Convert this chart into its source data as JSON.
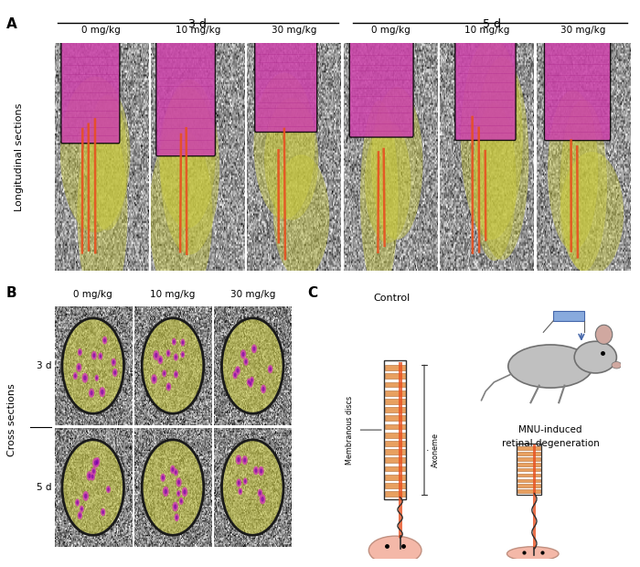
{
  "panel_A_label": "A",
  "panel_B_label": "B",
  "panel_C_label": "C",
  "panel_A_group1_label": "3 d",
  "panel_A_group2_label": "5 d",
  "doses": [
    "0 mg/kg",
    "10 mg/kg",
    "30 mg/kg"
  ],
  "doses_B": [
    "0 mg/kg",
    "10 mg/kg",
    "30 mg/kg"
  ],
  "row_labels_B": [
    "3 d",
    "5 d"
  ],
  "ylabel_A": "Longitudinal sections",
  "ylabel_B": "Cross sections",
  "control_label": "Control",
  "mnu_line1": "MNU-induced",
  "mnu_line2": "retinal degeneration",
  "axoneme_label": "Axoneme",
  "membranous_label": "Membranous discs",
  "bg_color": "#ffffff",
  "purple_color": "#cc44aa",
  "yellow_color": "#c8c840",
  "red_color": "#e85020",
  "disc_color": "#e8a060",
  "salmon_color": "#f4b8a8",
  "gray_color": "#909090",
  "dark_gray": "#505050",
  "mouse_color": "#c0c0c0",
  "syringe_color": "#88aadd"
}
